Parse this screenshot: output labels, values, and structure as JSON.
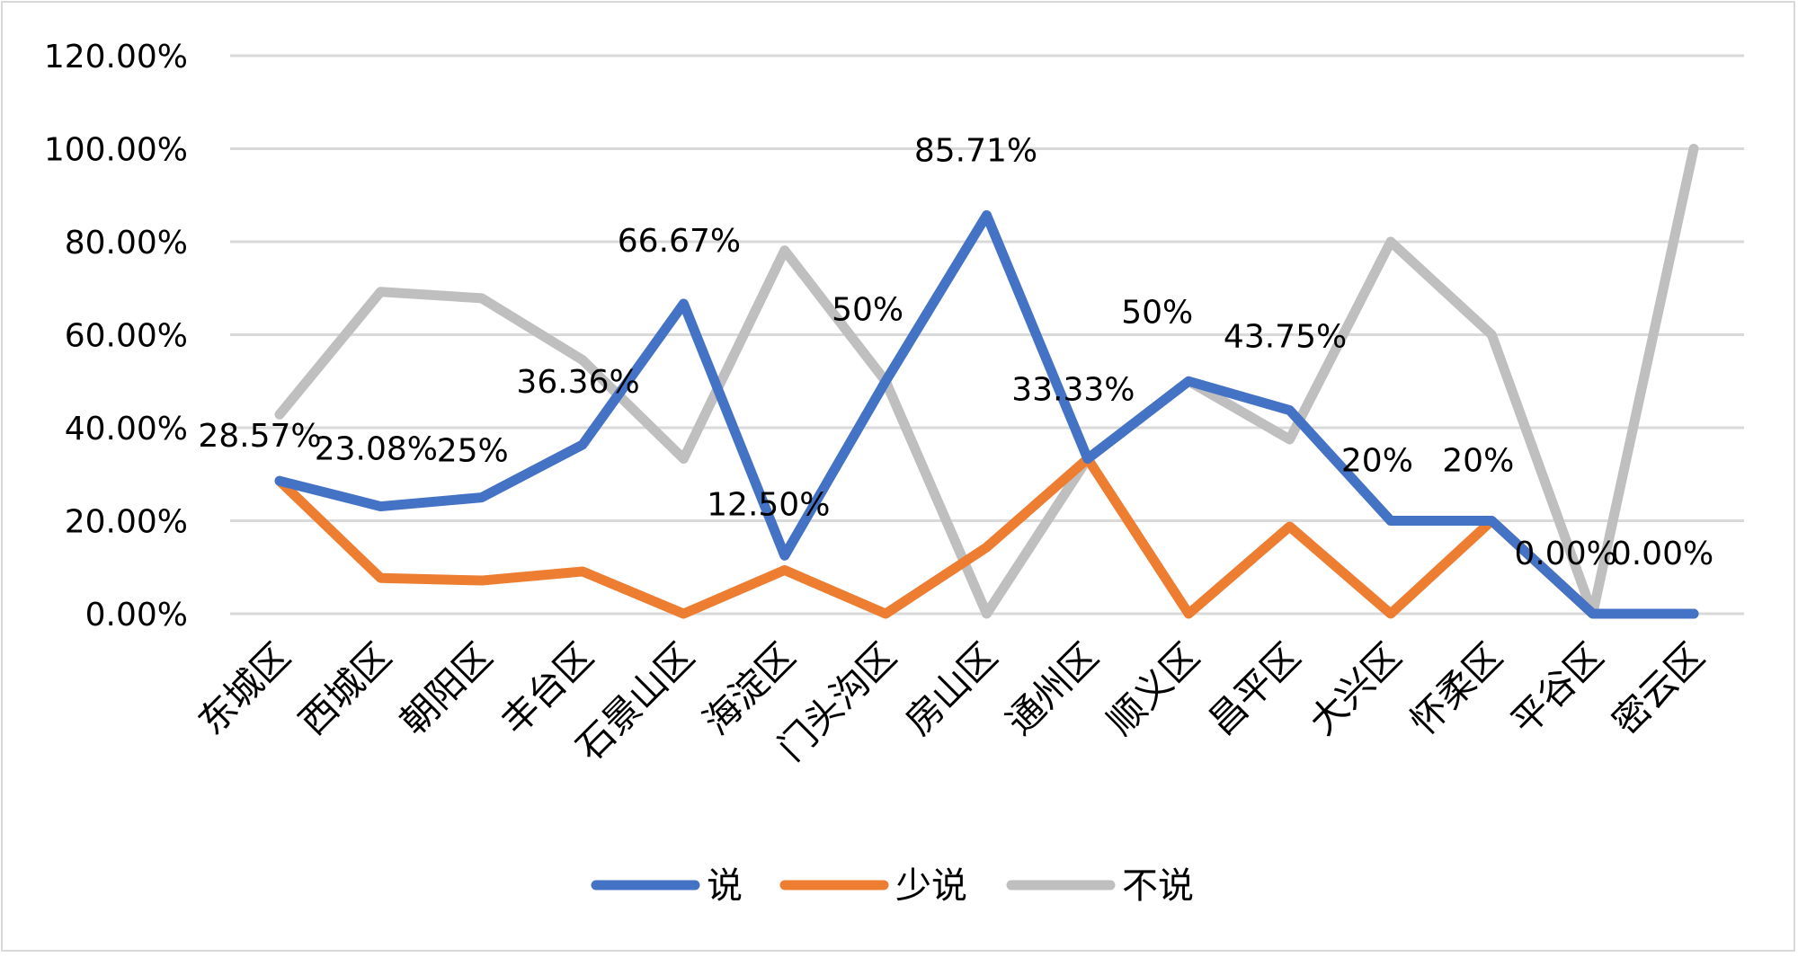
{
  "chart_data": {
    "type": "line",
    "categories": [
      "东城区",
      "西城区",
      "朝阳区",
      "丰台区",
      "石景山区",
      "海淀区",
      "门头沟区",
      "房山区",
      "通州区",
      "顺义区",
      "昌平区",
      "大兴区",
      "怀柔区",
      "平谷区",
      "密云区"
    ],
    "ylim": [
      0,
      120
    ],
    "yticks": [
      "0.00%",
      "20.00%",
      "40.00%",
      "60.00%",
      "80.00%",
      "100.00%",
      "120.00%"
    ],
    "grid": true,
    "legend": "bottom",
    "series": [
      {
        "name": "说",
        "color": "#4472c4",
        "values": [
          28.57,
          23.08,
          25,
          36.36,
          66.67,
          12.5,
          50,
          85.71,
          33.33,
          50,
          43.75,
          20,
          20,
          0,
          0
        ],
        "labels": [
          "28.57%",
          "23.08%",
          "25%",
          "36.36%",
          "66.67%",
          "12.50%",
          "50%",
          "85.71%",
          "33.33%",
          "50%",
          "43.75%",
          "20%",
          "20%",
          "0.00%",
          "0.00%"
        ]
      },
      {
        "name": "少说",
        "color": "#ed7d31",
        "values": [
          28.57,
          7.69,
          7.14,
          9.09,
          0,
          9.38,
          0,
          14.29,
          33.33,
          0,
          18.75,
          0,
          20,
          0,
          0
        ]
      },
      {
        "name": "不说",
        "color": "#bfbfbf",
        "values": [
          42.86,
          69.23,
          67.86,
          54.55,
          33.33,
          78.13,
          50,
          0,
          33.33,
          50,
          37.5,
          80,
          60,
          0,
          100
        ]
      }
    ]
  }
}
